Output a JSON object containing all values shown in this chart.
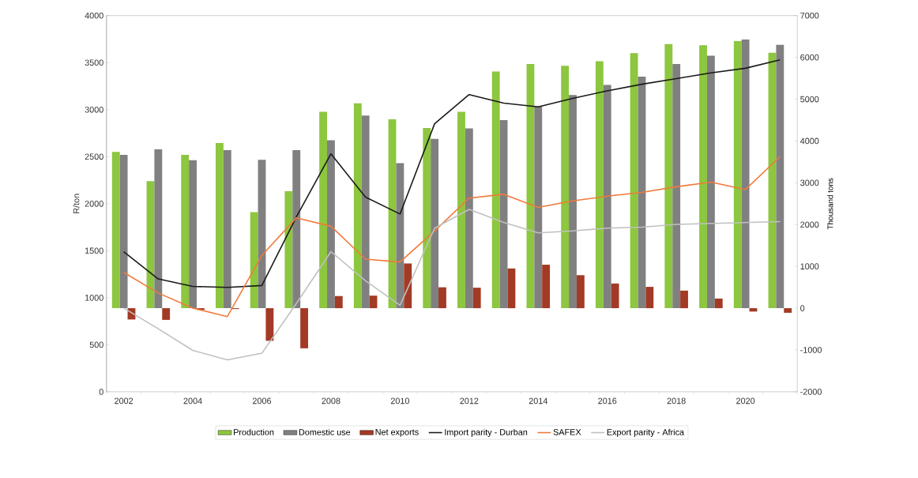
{
  "chart_data": {
    "type": "bar",
    "ylabel": "R/ton",
    "y2label": "Thousand tons",
    "categories": [
      "2002",
      null,
      "2004",
      null,
      "2006",
      null,
      "2008",
      null,
      "2010",
      null,
      "2012",
      null,
      "2014",
      null,
      "2016",
      null,
      "2018",
      null,
      "2020",
      null
    ],
    "series": [
      {
        "name": "Production",
        "axis": "y2",
        "color": "#8dc63f",
        "values": [
          3740,
          3040,
          3670,
          3950,
          2300,
          2800,
          4700,
          4900,
          4520,
          4310,
          4700,
          5660,
          5840,
          5800,
          5910,
          6100,
          6320,
          6290,
          6390,
          6110
        ]
      },
      {
        "name": "Domestic use",
        "axis": "y2",
        "color": "#808080",
        "values": [
          3670,
          3800,
          3540,
          3780,
          3550,
          3780,
          4020,
          4610,
          3470,
          4050,
          4300,
          4500,
          4830,
          5100,
          5340,
          5540,
          5840,
          6040,
          6430,
          6300
        ]
      },
      {
        "name": "Net exports",
        "axis": "y2",
        "color": "#a33a25",
        "values": [
          -270,
          -280,
          -40,
          -20,
          -780,
          -960,
          290,
          300,
          1070,
          500,
          490,
          950,
          1040,
          790,
          590,
          510,
          420,
          230,
          -80,
          -110
        ]
      },
      {
        "name": "Import parity - Durban",
        "type": "line",
        "color": "#1a1a1a",
        "values": [
          1490,
          1200,
          1120,
          1110,
          1130,
          1860,
          2530,
          2070,
          1890,
          2850,
          3160,
          3070,
          3030,
          3120,
          3200,
          3270,
          3330,
          3390,
          3440,
          3530
        ]
      },
      {
        "name": "SAFEX",
        "type": "line",
        "color": "#f07a3a",
        "values": [
          1270,
          1050,
          890,
          800,
          1450,
          1850,
          1760,
          1410,
          1380,
          1710,
          2060,
          2100,
          1960,
          2030,
          2080,
          2120,
          2180,
          2230,
          2150,
          2500
        ]
      },
      {
        "name": "Export parity - Africa",
        "type": "line",
        "color": "#c0c0c0",
        "values": [
          890,
          670,
          440,
          340,
          410,
          940,
          1490,
          1180,
          920,
          1740,
          1940,
          1800,
          1690,
          1710,
          1740,
          1750,
          1780,
          1790,
          1800,
          1810
        ]
      }
    ],
    "ylim": [
      0,
      4000
    ],
    "yticks": [
      0,
      500,
      1000,
      1500,
      2000,
      2500,
      3000,
      3500,
      4000
    ],
    "y2lim": [
      -2000,
      7000
    ],
    "y2ticks": [
      -2000,
      -1000,
      0,
      1000,
      2000,
      3000,
      4000,
      5000,
      6000,
      7000
    ],
    "grid": false,
    "legend": "bottom",
    "marker": "none",
    "line_style": "solid"
  }
}
